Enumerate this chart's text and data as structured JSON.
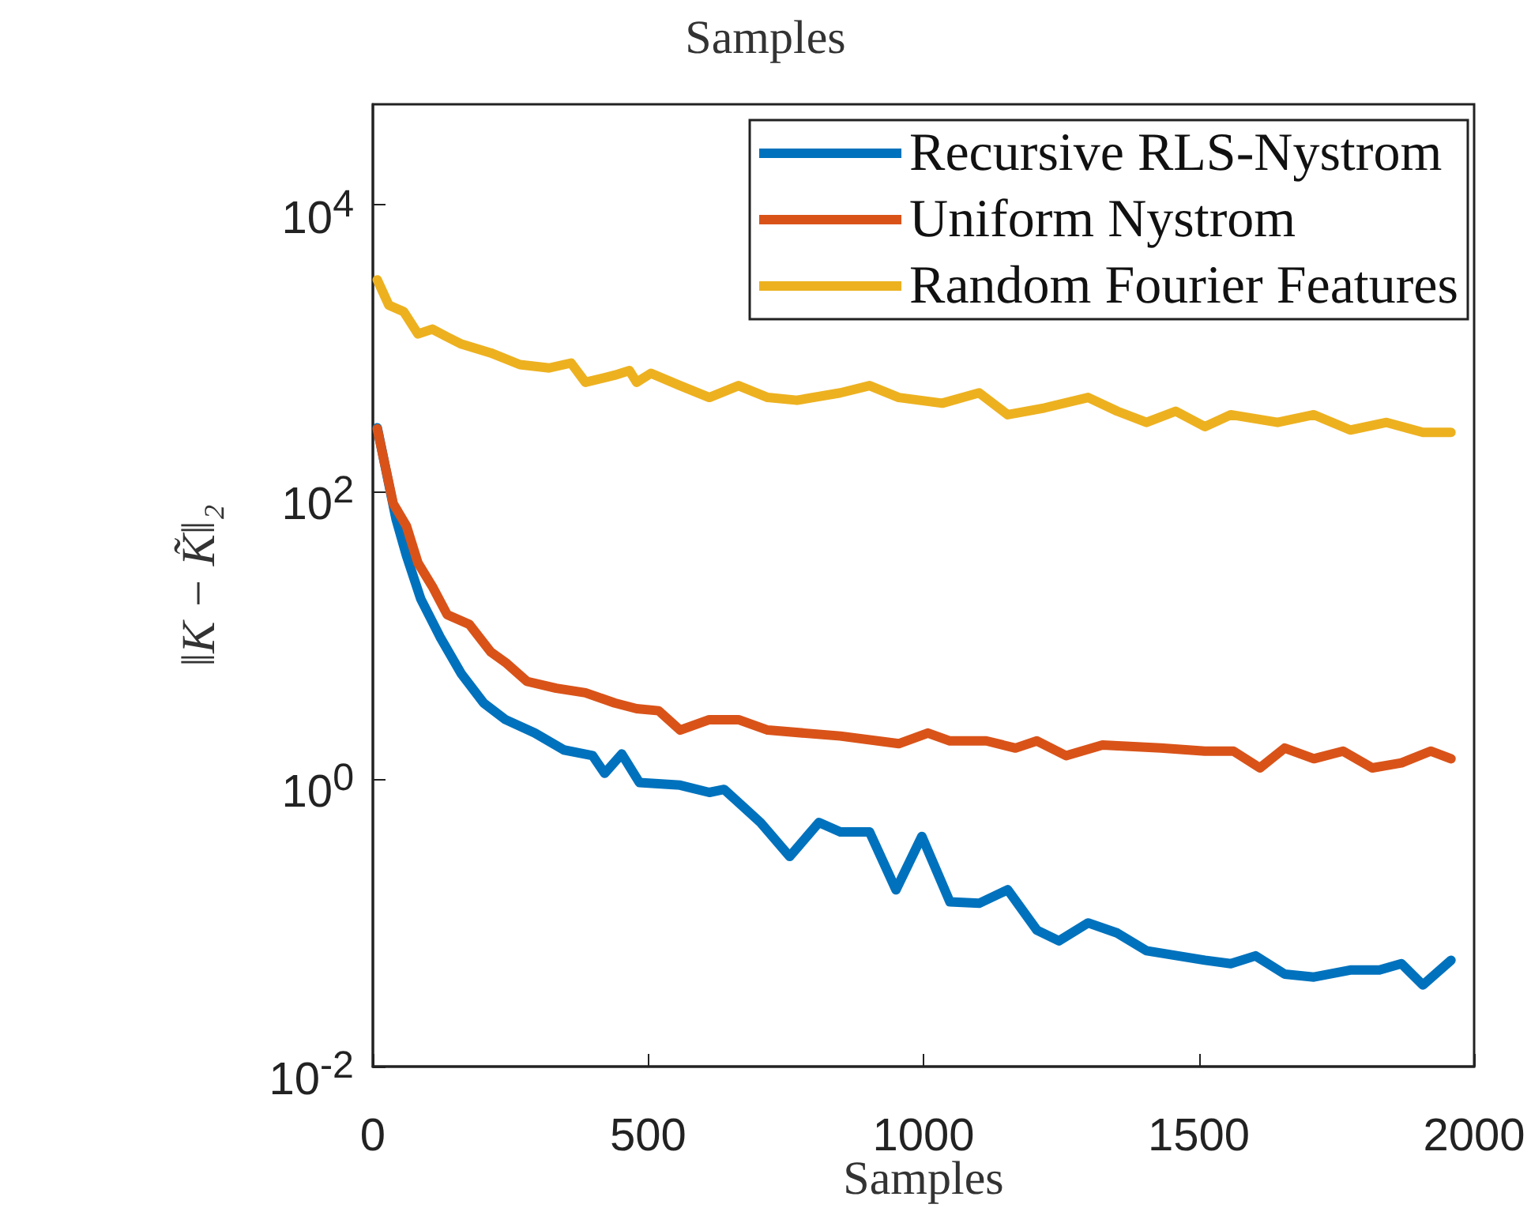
{
  "chart_data": {
    "type": "line",
    "title": "Samples",
    "xlabel": "Samples",
    "ylabel": "‖K − K̃‖₂",
    "log": "y",
    "grid": false,
    "legend": "top right",
    "marker": "none",
    "line_style": "solid",
    "xlim": [
      0,
      2000
    ],
    "xticks": [
      0,
      500,
      1000,
      1500,
      2000
    ],
    "ylim": [
      0.01,
      50000
    ],
    "yticks": [
      {
        "value": 0.01,
        "label": "10$^{-2}$"
      },
      {
        "value": 1,
        "label": "10$^{0}$"
      },
      {
        "value": 100,
        "label": "10$^{2}$"
      },
      {
        "value": 10000,
        "label": "10$^{4}$"
      }
    ],
    "series": [
      {
        "name": "Recursive RLS-Nystrom",
        "color": "#0072bd",
        "x": [
          8,
          42,
          61,
          87,
          122,
          161,
          201,
          241,
          294,
          347,
          399,
          421,
          452,
          484,
          558,
          611,
          638,
          704,
          757,
          810,
          849,
          902,
          950,
          997,
          1048,
          1101,
          1153,
          1206,
          1246,
          1299,
          1352,
          1405,
          1511,
          1558,
          1603,
          1656,
          1709,
          1775,
          1828,
          1868,
          1907,
          1958
        ],
        "values": [
          280,
          65,
          36,
          18,
          9.8,
          5.4,
          3.4,
          2.6,
          2.1,
          1.6,
          1.46,
          1.1,
          1.5,
          0.95,
          0.91,
          0.81,
          0.85,
          0.5,
          0.29,
          0.5,
          0.43,
          0.43,
          0.17,
          0.4,
          0.14,
          0.137,
          0.17,
          0.089,
          0.075,
          0.1,
          0.085,
          0.064,
          0.055,
          0.052,
          0.059,
          0.044,
          0.042,
          0.047,
          0.047,
          0.052,
          0.037,
          0.055
        ]
      },
      {
        "name": "Uniform Nystrom",
        "color": "#d95319",
        "x": [
          8,
          37,
          61,
          82,
          108,
          135,
          175,
          214,
          241,
          280,
          333,
          386,
          439,
          479,
          519,
          558,
          611,
          664,
          717,
          849,
          955,
          1008,
          1048,
          1114,
          1167,
          1206,
          1259,
          1325,
          1431,
          1511,
          1563,
          1611,
          1656,
          1709,
          1762,
          1815,
          1868,
          1921,
          1958
        ],
        "values": [
          275,
          83,
          58,
          32,
          22,
          14,
          12,
          7.7,
          6.5,
          4.8,
          4.3,
          4,
          3.4,
          3.1,
          3,
          2.2,
          2.6,
          2.6,
          2.2,
          2,
          1.77,
          2.1,
          1.85,
          1.85,
          1.65,
          1.85,
          1.46,
          1.73,
          1.65,
          1.57,
          1.57,
          1.2,
          1.65,
          1.39,
          1.57,
          1.2,
          1.3,
          1.57,
          1.39
        ]
      },
      {
        "name": "Random Fourier Features",
        "color": "#edb120",
        "x": [
          8,
          29,
          56,
          82,
          108,
          135,
          161,
          214,
          267,
          320,
          360,
          386,
          439,
          466,
          479,
          505,
          558,
          611,
          664,
          717,
          770,
          849,
          902,
          955,
          1034,
          1101,
          1153,
          1220,
          1299,
          1352,
          1405,
          1458,
          1511,
          1558,
          1643,
          1709,
          1775,
          1841,
          1907,
          1958
        ],
        "values": [
          3000,
          2000,
          1800,
          1260,
          1360,
          1200,
          1070,
          930,
          770,
          730,
          790,
          580,
          650,
          700,
          580,
          670,
          550,
          455,
          550,
          455,
          435,
          490,
          550,
          455,
          415,
          490,
          345,
          385,
          455,
          365,
          305,
          365,
          285,
          345,
          305,
          345,
          270,
          305,
          260,
          260
        ]
      }
    ]
  }
}
